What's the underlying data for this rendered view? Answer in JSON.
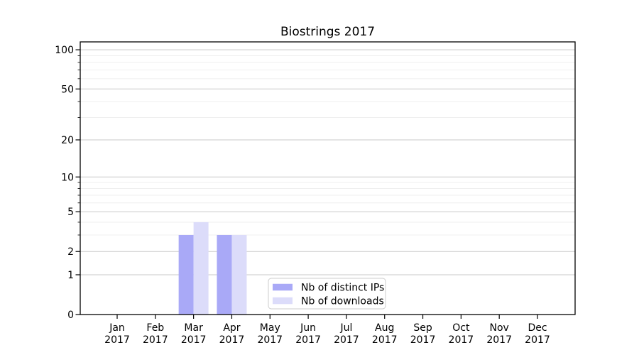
{
  "figure": {
    "title": "Biostrings 2017"
  },
  "chart_data": {
    "type": "bar",
    "title": "Biostrings 2017",
    "categories": [
      "Jan",
      "Feb",
      "Mar",
      "Apr",
      "May",
      "Jun",
      "Jul",
      "Aug",
      "Sep",
      "Oct",
      "Nov",
      "Dec"
    ],
    "x_tick_second_line": "2017",
    "series": [
      {
        "name": "Nb of distinct IPs",
        "color": "#a9a9f7",
        "values": [
          0,
          0,
          3,
          3,
          0,
          0,
          0,
          0,
          0,
          0,
          0,
          0
        ]
      },
      {
        "name": "Nb of downloads",
        "color": "#dcdcfa",
        "values": [
          0,
          0,
          4,
          3,
          0,
          0,
          0,
          0,
          0,
          0,
          0,
          0
        ]
      }
    ],
    "y_scale": "log1p",
    "y_major_ticks": [
      0,
      1,
      2,
      5,
      10,
      20,
      50,
      100
    ],
    "y_minor_ticks": [
      3,
      4,
      6,
      7,
      8,
      9,
      30,
      40,
      60,
      70,
      80,
      90
    ],
    "ylim": [
      0,
      115
    ],
    "xlabel": "",
    "ylabel": "",
    "grid": true,
    "legend": {
      "position": "lower-center",
      "items": [
        "Nb of distinct IPs",
        "Nb of downloads"
      ]
    },
    "colors": {
      "major_grid": "#c9c9c9",
      "minor_grid": "#efefef",
      "axis": "#000000",
      "legend_border": "#cccccc",
      "background": "#ffffff"
    }
  }
}
